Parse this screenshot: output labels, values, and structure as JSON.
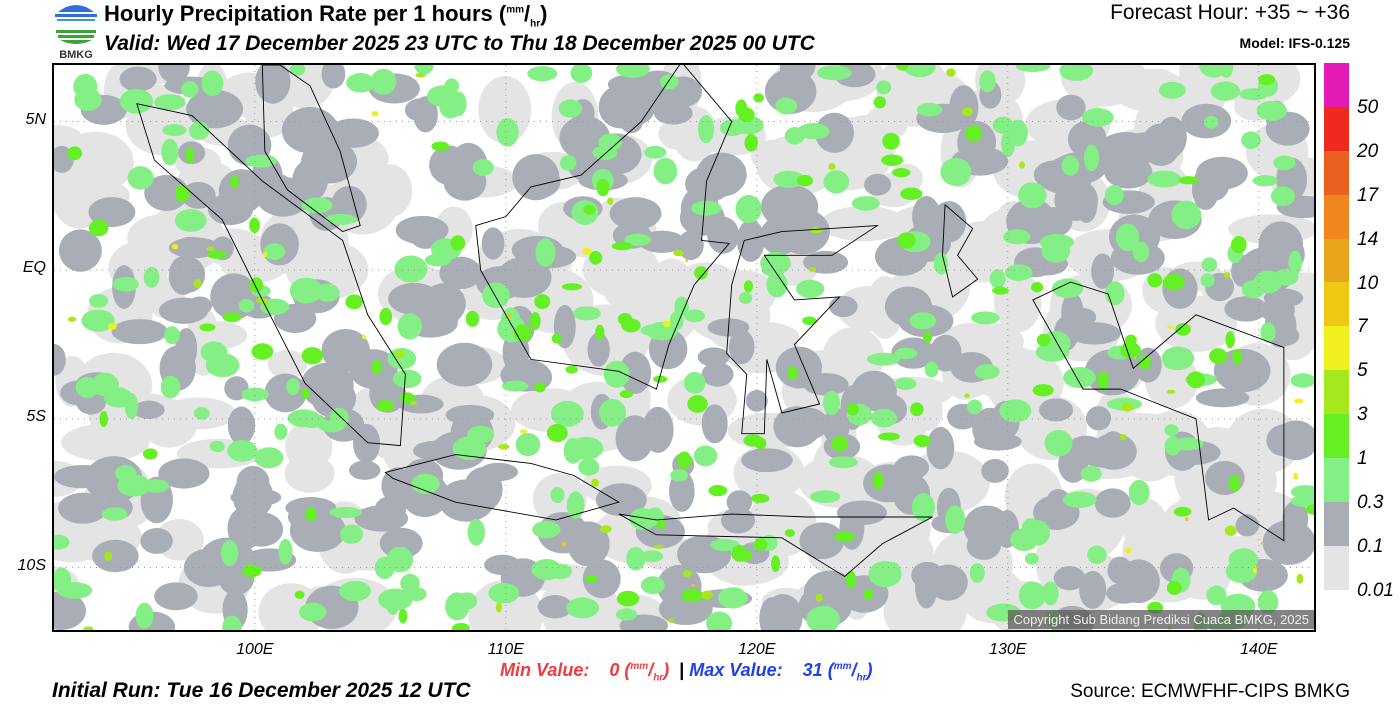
{
  "header": {
    "logo_text": "BMKG",
    "title": "Hourly Precipitation Rate per 1 hours (",
    "title_unit_sup": "mm",
    "title_unit_sub": "hr",
    "valid": "Valid: Wed 17 December 2025 23 UTC to Thu 18 December 2025 00 UTC",
    "forecast_hour": "Forecast Hour: +35 ~ +36",
    "model": "Model: IFS-0.125"
  },
  "map": {
    "lat_labels": [
      "5N",
      "EQ",
      "5S",
      "10S"
    ],
    "lat_values": [
      5,
      0,
      -5,
      -10
    ],
    "lon_labels": [
      "100E",
      "110E",
      "120E",
      "130E",
      "140E"
    ],
    "lon_values": [
      100,
      110,
      120,
      130,
      140
    ],
    "lon_range": [
      92,
      142.2
    ],
    "lat_range": [
      6.9,
      -12.1
    ],
    "copyright": "Copyright Sub Bidang Prediksi Cuaca BMKG, 2025"
  },
  "colorbar": {
    "labels": [
      "50",
      "20",
      "17",
      "14",
      "10",
      "7",
      "5",
      "3",
      "1",
      "0.3",
      "0.1",
      "0.01"
    ],
    "colors": [
      "#e41bb3",
      "#ee2a1e",
      "#e9601f",
      "#ef861e",
      "#e8a51b",
      "#eec813",
      "#f0f01e",
      "#a6e81e",
      "#64f022",
      "#84ef84",
      "#a9adb5",
      "#e4e4e4"
    ]
  },
  "footer": {
    "min_label": "Min Value:",
    "min_value": "0",
    "max_label": "Max Value:",
    "max_value": "31",
    "unit_sup": "mm",
    "unit_sub": "hr",
    "separator": "|",
    "initial_run": "Initial Run: Tue 16 December 2025 12 UTC",
    "source": "Source: ECMWFHF-CIPS BMKG"
  }
}
